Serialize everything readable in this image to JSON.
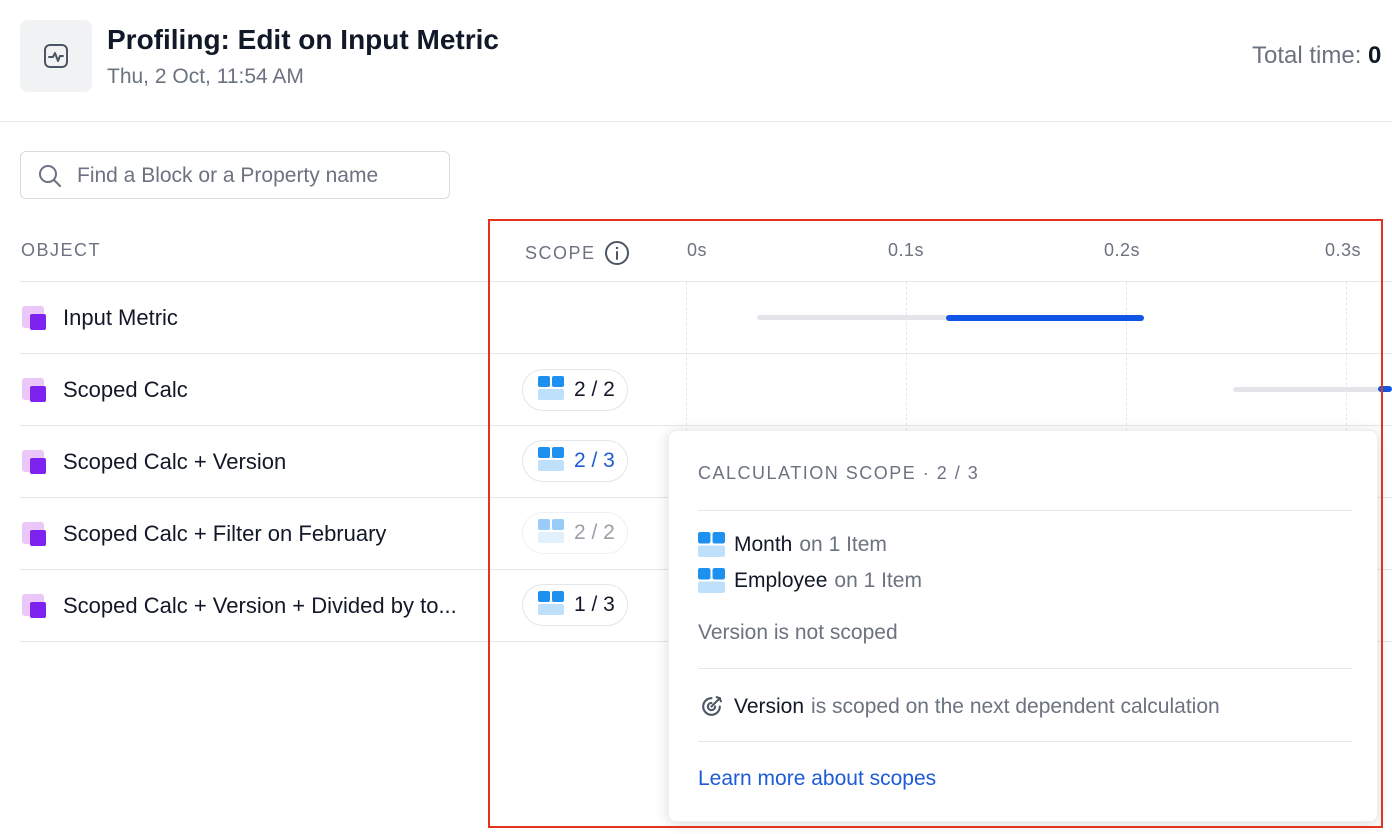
{
  "header": {
    "title": "Profiling: Edit on Input Metric",
    "subtitle": "Thu, 2 Oct, 11:54 AM",
    "total_time_label": "Total time:",
    "total_time_value": "0"
  },
  "search": {
    "placeholder": "Find a Block or a Property name",
    "value": ""
  },
  "table": {
    "columns": {
      "object": "OBJECT",
      "scope": "SCOPE"
    },
    "ticks": [
      "0s",
      "0.1s",
      "0.2s",
      "0.3s"
    ],
    "rows": [
      {
        "name": "Input Metric",
        "scope": ""
      },
      {
        "name": "Scoped Calc",
        "scope": "2 / 2"
      },
      {
        "name": "Scoped Calc + Version",
        "scope": "2 / 3"
      },
      {
        "name": "Scoped Calc + Filter on February",
        "scope": "2 / 2"
      },
      {
        "name": "Scoped Calc + Version + Divided by to...",
        "scope": "1 / 3"
      }
    ]
  },
  "popover": {
    "title": "CALCULATION SCOPE · 2 / 3",
    "scoped": [
      {
        "name": "Month",
        "detail": "on 1 Item"
      },
      {
        "name": "Employee",
        "detail": "on 1 Item"
      }
    ],
    "not_scoped": "Version is not scoped",
    "next_name": "Version",
    "next_detail": "is scoped on the next dependent calculation",
    "link": "Learn more about scopes"
  },
  "colors": {
    "accent": "#1254e6",
    "link": "#1d5bd8",
    "highlight": "#e2341d",
    "object_icon": "#7e22f2"
  }
}
